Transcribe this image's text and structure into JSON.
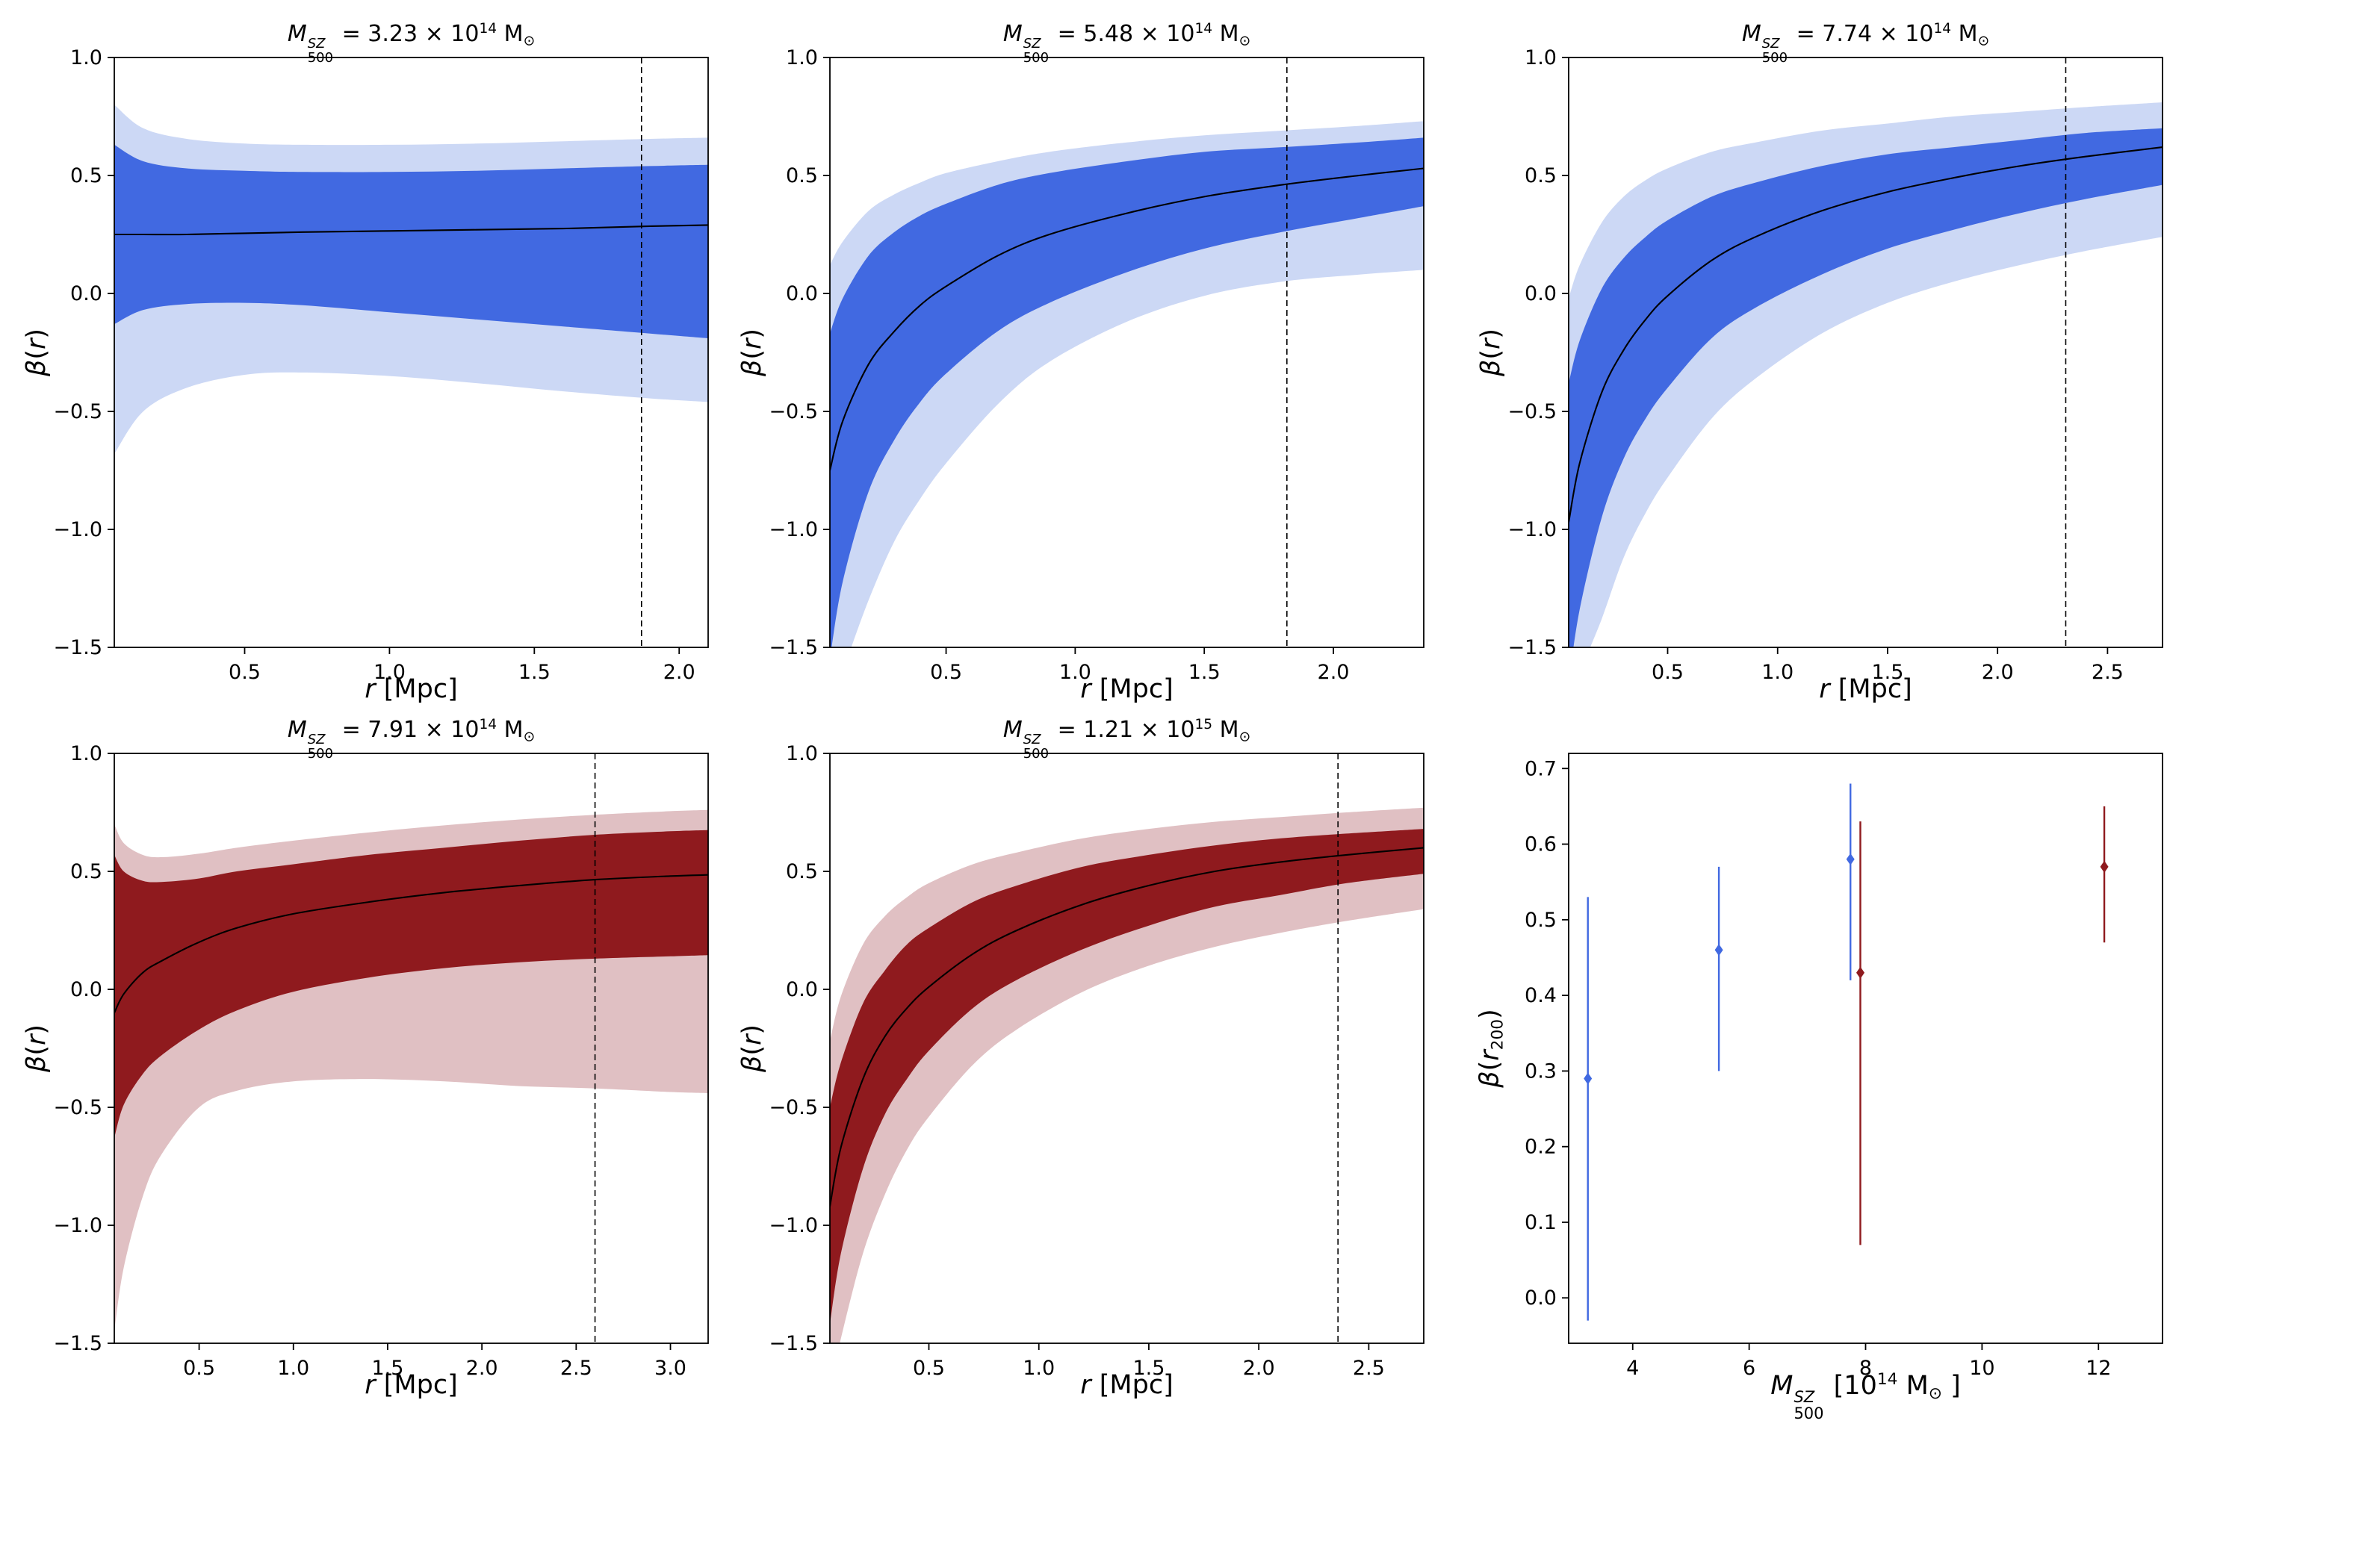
{
  "page": {
    "background": "#ffffff"
  },
  "colors": {
    "blue_inner": "#4169e1",
    "blue_outer": "#ccd8f5",
    "red_inner": "#8f1a1e",
    "red_outer": "#e0c0c3",
    "median_line": "#000000",
    "axis": "#000000",
    "scatter_blue": "#4169e1",
    "scatter_red": "#8f1a1e"
  },
  "chart_data": [
    {
      "name": "panel-1",
      "type": "band",
      "palette": "blue",
      "title": [
        {
          "t": "M",
          "i": 1
        },
        {
          "stack": {
            "sup": "SZ",
            "sub": "500"
          }
        },
        {
          "t": " = 3.23 × 10"
        },
        {
          "t": "14",
          "s": "sup"
        },
        {
          "t": " M"
        },
        {
          "t": "⊙",
          "s": "sub"
        }
      ],
      "xlabel": [
        {
          "t": "r",
          "i": 1
        },
        {
          "t": " [Mpc]"
        }
      ],
      "ylabel": [
        {
          "t": "β",
          "i": 1
        },
        {
          "t": "("
        },
        {
          "t": "r",
          "i": 1
        },
        {
          "t": ")"
        }
      ],
      "xlim": [
        0.05,
        2.1
      ],
      "ylim": [
        -1.5,
        1.0
      ],
      "xticks": [
        0.5,
        1.0,
        1.5,
        2.0
      ],
      "yticks": [
        -1.5,
        -1.0,
        -0.5,
        0.0,
        0.5,
        1.0
      ],
      "xtick_decimals": 1,
      "ytick_decimals": 1,
      "vline": 1.87,
      "r": [
        0.05,
        0.15,
        0.3,
        0.5,
        0.7,
        1.0,
        1.3,
        1.6,
        1.9,
        2.1
      ],
      "median": [
        0.25,
        0.25,
        0.25,
        0.255,
        0.26,
        0.265,
        0.27,
        0.275,
        0.285,
        0.29
      ],
      "band1_hi": [
        0.63,
        0.56,
        0.53,
        0.52,
        0.515,
        0.515,
        0.52,
        0.53,
        0.54,
        0.545
      ],
      "band1_lo": [
        -0.13,
        -0.07,
        -0.045,
        -0.04,
        -0.05,
        -0.08,
        -0.11,
        -0.14,
        -0.17,
        -0.19
      ],
      "band2_hi": [
        0.8,
        0.7,
        0.655,
        0.635,
        0.63,
        0.63,
        0.635,
        0.645,
        0.655,
        0.66
      ],
      "band2_lo": [
        -0.68,
        -0.5,
        -0.4,
        -0.345,
        -0.335,
        -0.35,
        -0.38,
        -0.415,
        -0.445,
        -0.46
      ]
    },
    {
      "name": "panel-2",
      "type": "band",
      "palette": "blue",
      "title": [
        {
          "t": "M",
          "i": 1
        },
        {
          "stack": {
            "sup": "SZ",
            "sub": "500"
          }
        },
        {
          "t": " = 5.48 × 10"
        },
        {
          "t": "14",
          "s": "sup"
        },
        {
          "t": " M"
        },
        {
          "t": "⊙",
          "s": "sub"
        }
      ],
      "xlabel": [
        {
          "t": "r",
          "i": 1
        },
        {
          "t": " [Mpc]"
        }
      ],
      "ylabel": [
        {
          "t": "β",
          "i": 1
        },
        {
          "t": "("
        },
        {
          "t": "r",
          "i": 1
        },
        {
          "t": ")"
        }
      ],
      "xlim": [
        0.05,
        2.35
      ],
      "ylim": [
        -1.5,
        1.0
      ],
      "xticks": [
        0.5,
        1.0,
        1.5,
        2.0
      ],
      "yticks": [
        -1.5,
        -1.0,
        -0.5,
        0.0,
        0.5,
        1.0
      ],
      "xtick_decimals": 1,
      "ytick_decimals": 1,
      "vline": 1.82,
      "r": [
        0.05,
        0.1,
        0.2,
        0.3,
        0.4,
        0.5,
        0.7,
        0.9,
        1.2,
        1.5,
        1.8,
        2.1,
        2.35
      ],
      "median": [
        -0.75,
        -0.54,
        -0.3,
        -0.16,
        -0.05,
        0.03,
        0.16,
        0.25,
        0.34,
        0.41,
        0.46,
        0.5,
        0.53
      ],
      "band1_hi": [
        -0.17,
        -0.02,
        0.16,
        0.26,
        0.33,
        0.38,
        0.46,
        0.51,
        0.56,
        0.6,
        0.62,
        0.64,
        0.66
      ],
      "band1_lo": [
        -1.55,
        -1.22,
        -0.84,
        -0.62,
        -0.46,
        -0.34,
        -0.16,
        -0.04,
        0.09,
        0.19,
        0.26,
        0.32,
        0.37
      ],
      "band2_hi": [
        0.12,
        0.22,
        0.35,
        0.42,
        0.47,
        0.51,
        0.56,
        0.6,
        0.64,
        0.67,
        0.69,
        0.71,
        0.73
      ],
      "band2_lo": [
        -1.75,
        -1.6,
        -1.3,
        -1.05,
        -0.87,
        -0.72,
        -0.47,
        -0.29,
        -0.12,
        -0.01,
        0.05,
        0.08,
        0.1
      ]
    },
    {
      "name": "panel-3",
      "type": "band",
      "palette": "blue",
      "title": [
        {
          "t": "M",
          "i": 1
        },
        {
          "stack": {
            "sup": "SZ",
            "sub": "500"
          }
        },
        {
          "t": " = 7.74 × 10"
        },
        {
          "t": "14",
          "s": "sup"
        },
        {
          "t": " M"
        },
        {
          "t": "⊙",
          "s": "sub"
        }
      ],
      "xlabel": [
        {
          "t": "r",
          "i": 1
        },
        {
          "t": " [Mpc]"
        }
      ],
      "ylabel": [
        {
          "t": "β",
          "i": 1
        },
        {
          "t": "("
        },
        {
          "t": "r",
          "i": 1
        },
        {
          "t": ")"
        }
      ],
      "xlim": [
        0.05,
        2.75
      ],
      "ylim": [
        -1.5,
        1.0
      ],
      "xticks": [
        0.5,
        1.0,
        1.5,
        2.0,
        2.5
      ],
      "yticks": [
        -1.5,
        -1.0,
        -0.5,
        0.0,
        0.5,
        1.0
      ],
      "xtick_decimals": 1,
      "ytick_decimals": 1,
      "vline": 2.31,
      "r": [
        0.05,
        0.1,
        0.2,
        0.3,
        0.4,
        0.5,
        0.7,
        0.9,
        1.2,
        1.5,
        1.8,
        2.1,
        2.4,
        2.75
      ],
      "median": [
        -0.97,
        -0.72,
        -0.42,
        -0.24,
        -0.11,
        -0.01,
        0.14,
        0.24,
        0.35,
        0.43,
        0.49,
        0.54,
        0.58,
        0.62
      ],
      "band1_hi": [
        -0.38,
        -0.2,
        0.02,
        0.15,
        0.24,
        0.31,
        0.41,
        0.47,
        0.54,
        0.59,
        0.62,
        0.65,
        0.68,
        0.7
      ],
      "band1_lo": [
        -1.65,
        -1.34,
        -0.95,
        -0.7,
        -0.53,
        -0.4,
        -0.19,
        -0.06,
        0.08,
        0.19,
        0.27,
        0.34,
        0.4,
        0.46
      ],
      "band2_hi": [
        -0.02,
        0.12,
        0.3,
        0.41,
        0.48,
        0.53,
        0.6,
        0.64,
        0.69,
        0.72,
        0.75,
        0.77,
        0.79,
        0.81
      ],
      "band2_lo": [
        -1.85,
        -1.62,
        -1.38,
        -1.12,
        -0.93,
        -0.78,
        -0.53,
        -0.36,
        -0.17,
        -0.04,
        0.05,
        0.12,
        0.18,
        0.24
      ]
    },
    {
      "name": "panel-4",
      "type": "band",
      "palette": "red",
      "title": [
        {
          "t": "M",
          "i": 1
        },
        {
          "stack": {
            "sup": "SZ",
            "sub": "500"
          }
        },
        {
          "t": " = 7.91 × 10"
        },
        {
          "t": "14",
          "s": "sup"
        },
        {
          "t": " M"
        },
        {
          "t": "⊙",
          "s": "sub"
        }
      ],
      "xlabel": [
        {
          "t": "r",
          "i": 1
        },
        {
          "t": " [Mpc]"
        }
      ],
      "ylabel": [
        {
          "t": "β",
          "i": 1
        },
        {
          "t": "("
        },
        {
          "t": "r",
          "i": 1
        },
        {
          "t": ")"
        }
      ],
      "xlim": [
        0.05,
        3.2
      ],
      "ylim": [
        -1.5,
        1.0
      ],
      "xticks": [
        0.5,
        1.0,
        1.5,
        2.0,
        2.5,
        3.0
      ],
      "yticks": [
        -1.5,
        -1.0,
        -0.5,
        0.0,
        0.5,
        1.0
      ],
      "xtick_decimals": 1,
      "ytick_decimals": 1,
      "vline": 2.6,
      "r": [
        0.05,
        0.1,
        0.2,
        0.3,
        0.5,
        0.7,
        1.0,
        1.4,
        1.8,
        2.2,
        2.6,
        3.0,
        3.2
      ],
      "median": [
        -0.1,
        -0.02,
        0.07,
        0.12,
        0.2,
        0.26,
        0.32,
        0.37,
        0.41,
        0.44,
        0.465,
        0.48,
        0.485
      ],
      "band1_hi": [
        0.57,
        0.5,
        0.46,
        0.455,
        0.47,
        0.5,
        0.53,
        0.57,
        0.6,
        0.63,
        0.655,
        0.67,
        0.675
      ],
      "band1_lo": [
        -0.63,
        -0.49,
        -0.36,
        -0.28,
        -0.17,
        -0.09,
        -0.01,
        0.05,
        0.09,
        0.115,
        0.13,
        0.14,
        0.145
      ],
      "band2_hi": [
        0.7,
        0.62,
        0.57,
        0.56,
        0.575,
        0.6,
        0.63,
        0.665,
        0.695,
        0.72,
        0.74,
        0.755,
        0.76
      ],
      "band2_lo": [
        -1.45,
        -1.18,
        -0.88,
        -0.7,
        -0.5,
        -0.43,
        -0.39,
        -0.38,
        -0.39,
        -0.41,
        -0.42,
        -0.435,
        -0.44
      ]
    },
    {
      "name": "panel-5",
      "type": "band",
      "palette": "red",
      "title": [
        {
          "t": "M",
          "i": 1
        },
        {
          "stack": {
            "sup": "SZ",
            "sub": "500"
          }
        },
        {
          "t": " = 1.21 × 10"
        },
        {
          "t": "15",
          "s": "sup"
        },
        {
          "t": " M"
        },
        {
          "t": "⊙",
          "s": "sub"
        }
      ],
      "xlabel": [
        {
          "t": "r",
          "i": 1
        },
        {
          "t": " [Mpc]"
        }
      ],
      "ylabel": [
        {
          "t": "β",
          "i": 1
        },
        {
          "t": "("
        },
        {
          "t": "r",
          "i": 1
        },
        {
          "t": ")"
        }
      ],
      "xlim": [
        0.05,
        2.75
      ],
      "ylim": [
        -1.5,
        1.0
      ],
      "xticks": [
        0.5,
        1.0,
        1.5,
        2.0,
        2.5
      ],
      "yticks": [
        -1.5,
        -1.0,
        -0.5,
        0.0,
        0.5,
        1.0
      ],
      "xtick_decimals": 1,
      "ytick_decimals": 1,
      "vline": 2.36,
      "r": [
        0.05,
        0.1,
        0.2,
        0.3,
        0.4,
        0.5,
        0.7,
        0.9,
        1.2,
        1.5,
        1.8,
        2.1,
        2.4,
        2.75
      ],
      "median": [
        -0.92,
        -0.67,
        -0.38,
        -0.2,
        -0.08,
        0.01,
        0.15,
        0.25,
        0.36,
        0.44,
        0.5,
        0.54,
        0.57,
        0.6
      ],
      "band1_hi": [
        -0.5,
        -0.31,
        -0.06,
        0.08,
        0.19,
        0.26,
        0.37,
        0.44,
        0.52,
        0.57,
        0.61,
        0.64,
        0.66,
        0.68
      ],
      "band1_lo": [
        -1.42,
        -1.12,
        -0.76,
        -0.53,
        -0.38,
        -0.26,
        -0.08,
        0.04,
        0.17,
        0.27,
        0.35,
        0.4,
        0.45,
        0.49
      ],
      "band2_hi": [
        -0.22,
        -0.03,
        0.19,
        0.31,
        0.39,
        0.45,
        0.53,
        0.58,
        0.64,
        0.68,
        0.71,
        0.73,
        0.75,
        0.77
      ],
      "band2_lo": [
        -1.7,
        -1.48,
        -1.12,
        -0.87,
        -0.68,
        -0.54,
        -0.32,
        -0.17,
        -0.01,
        0.1,
        0.18,
        0.24,
        0.29,
        0.34
      ]
    },
    {
      "name": "panel-6",
      "type": "scatter",
      "xlabel": [
        {
          "t": "M",
          "i": 1
        },
        {
          "stack": {
            "sup": "SZ",
            "sub": "500"
          }
        },
        {
          "t": " [10"
        },
        {
          "t": "14",
          "s": "sup"
        },
        {
          "t": " M"
        },
        {
          "t": "⊙",
          "s": "sub"
        },
        {
          "t": " ]"
        }
      ],
      "ylabel": [
        {
          "t": "β",
          "i": 1
        },
        {
          "t": "("
        },
        {
          "t": "r",
          "i": 1
        },
        {
          "t": "200",
          "s": "sub"
        },
        {
          "t": ")"
        }
      ],
      "xlim": [
        2.9,
        13.1
      ],
      "ylim": [
        -0.06,
        0.72
      ],
      "xticks": [
        4,
        6,
        8,
        10,
        12
      ],
      "yticks": [
        0.0,
        0.1,
        0.2,
        0.3,
        0.4,
        0.5,
        0.6,
        0.7
      ],
      "xtick_decimals": 0,
      "ytick_decimals": 1,
      "points": [
        {
          "x": 3.23,
          "y": 0.29,
          "lo": -0.03,
          "hi": 0.53,
          "c": "blue"
        },
        {
          "x": 5.48,
          "y": 0.46,
          "lo": 0.3,
          "hi": 0.57,
          "c": "blue"
        },
        {
          "x": 7.74,
          "y": 0.58,
          "lo": 0.42,
          "hi": 0.68,
          "c": "blue"
        },
        {
          "x": 7.91,
          "y": 0.43,
          "lo": 0.07,
          "hi": 0.63,
          "c": "red"
        },
        {
          "x": 12.1,
          "y": 0.57,
          "lo": 0.47,
          "hi": 0.65,
          "c": "red"
        }
      ]
    }
  ]
}
